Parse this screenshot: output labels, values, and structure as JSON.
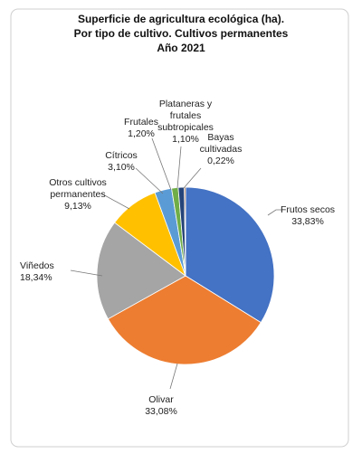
{
  "chart_data": {
    "type": "pie",
    "title": [
      "Superficie de agricultura ecológica (ha).",
      "Por tipo de cultivo.  Cultivos permanentes",
      "Año 2021"
    ],
    "categories": [
      "Frutos secos",
      "Olivar",
      "Viñedos",
      "Otros cultivos permanentes",
      "Cítricos",
      "Frutales",
      "Plataneras y frutales subtropicales",
      "Bayas cultivadas"
    ],
    "values": [
      33.83,
      33.08,
      18.34,
      9.13,
      3.1,
      1.2,
      1.1,
      0.22
    ],
    "value_labels": [
      "33,83%",
      "33,08%",
      "18,34%",
      "9,13%",
      "3,10%",
      "1,20%",
      "1,10%",
      "0,22%"
    ],
    "colors": [
      "#4472c4",
      "#ed7d31",
      "#a5a5a5",
      "#ffc000",
      "#5b9bd5",
      "#70ad47",
      "#264478",
      "#9e480e"
    ]
  }
}
